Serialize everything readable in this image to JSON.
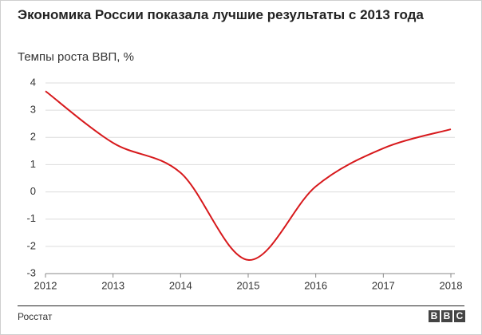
{
  "chart_data": {
    "type": "line",
    "title": "Экономика России показала лучшие результаты с 2013 года",
    "subtitle": "Темпы роста ВВП, %",
    "source": "Росстат",
    "logo": [
      "B",
      "B",
      "C"
    ],
    "x": [
      2012,
      2013,
      2014,
      2015,
      2016,
      2017,
      2018
    ],
    "series": [
      {
        "color": "#d7191c",
        "values": [
          3.7,
          1.8,
          0.7,
          -2.5,
          0.2,
          1.6,
          2.3
        ]
      }
    ],
    "xlim": [
      2012,
      2018
    ],
    "xticks": [
      2012,
      2013,
      2014,
      2015,
      2016,
      2017,
      2018
    ],
    "ylim": [
      -3,
      4
    ],
    "yticks": [
      -3,
      -2,
      -1,
      0,
      1,
      2,
      3,
      4
    ],
    "grid": true
  }
}
